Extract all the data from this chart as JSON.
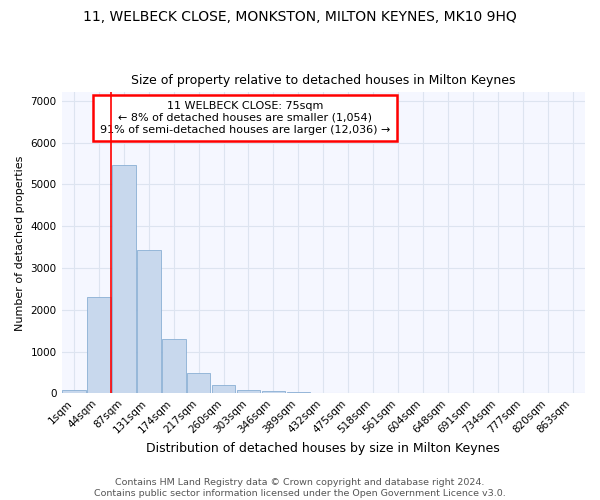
{
  "title1": "11, WELBECK CLOSE, MONKSTON, MILTON KEYNES, MK10 9HQ",
  "title2": "Size of property relative to detached houses in Milton Keynes",
  "xlabel": "Distribution of detached houses by size in Milton Keynes",
  "ylabel": "Number of detached properties",
  "bar_labels": [
    "1sqm",
    "44sqm",
    "87sqm",
    "131sqm",
    "174sqm",
    "217sqm",
    "260sqm",
    "303sqm",
    "346sqm",
    "389sqm",
    "432sqm",
    "475sqm",
    "518sqm",
    "561sqm",
    "604sqm",
    "648sqm",
    "691sqm",
    "734sqm",
    "777sqm",
    "820sqm",
    "863sqm"
  ],
  "bar_values": [
    75,
    2300,
    5450,
    3420,
    1300,
    480,
    190,
    90,
    60,
    35,
    0,
    0,
    0,
    0,
    0,
    0,
    0,
    0,
    0,
    0,
    0
  ],
  "bar_color": "#c8d8ed",
  "bar_edge_color": "#8aafd4",
  "annotation_box_text": "11 WELBECK CLOSE: 75sqm\n← 8% of detached houses are smaller (1,054)\n91% of semi-detached houses are larger (12,036) →",
  "annotation_box_color": "white",
  "annotation_box_edge_color": "red",
  "vline_x": 1.5,
  "vline_color": "red",
  "ylim": [
    0,
    7200
  ],
  "yticks": [
    0,
    1000,
    2000,
    3000,
    4000,
    5000,
    6000,
    7000
  ],
  "footer_text": "Contains HM Land Registry data © Crown copyright and database right 2024.\nContains public sector information licensed under the Open Government Licence v3.0.",
  "background_color": "#ffffff",
  "plot_bg_color": "#f5f7ff",
  "grid_color": "#dde4f0",
  "title1_fontsize": 10,
  "title2_fontsize": 9,
  "xlabel_fontsize": 9,
  "ylabel_fontsize": 8,
  "tick_fontsize": 7.5,
  "footer_fontsize": 6.8
}
